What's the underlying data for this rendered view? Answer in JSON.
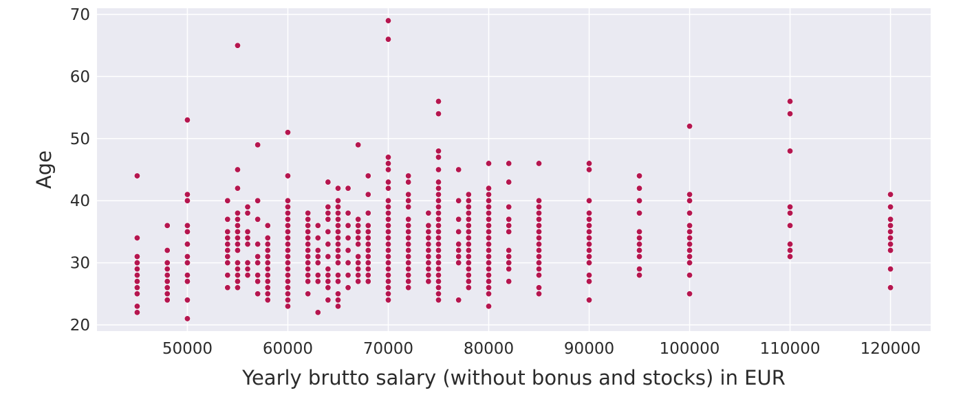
{
  "chart_data": {
    "type": "scatter",
    "title": "",
    "xlabel": "Yearly brutto salary (without bonus and stocks) in EUR",
    "ylabel": "Age",
    "xlim": [
      41000,
      124000
    ],
    "ylim": [
      19,
      71
    ],
    "xticks": [
      50000,
      60000,
      70000,
      80000,
      90000,
      100000,
      110000,
      120000
    ],
    "xtick_labels": [
      "50000",
      "60000",
      "70000",
      "80000",
      "90000",
      "100000",
      "110000",
      "120000"
    ],
    "yticks": [
      20,
      30,
      40,
      50,
      60,
      70
    ],
    "ytick_labels": [
      "20",
      "30",
      "40",
      "50",
      "60",
      "70"
    ],
    "grid": true,
    "background": "#eaeaf2",
    "grid_color": "#ffffff",
    "marker_color": "#b5164f",
    "points": [
      [
        45000,
        22
      ],
      [
        45000,
        23
      ],
      [
        45000,
        25
      ],
      [
        45000,
        26
      ],
      [
        45000,
        27
      ],
      [
        45000,
        28
      ],
      [
        45000,
        29
      ],
      [
        45000,
        30
      ],
      [
        45000,
        31
      ],
      [
        45000,
        34
      ],
      [
        45000,
        44
      ],
      [
        48000,
        24
      ],
      [
        48000,
        25
      ],
      [
        48000,
        26
      ],
      [
        48000,
        27
      ],
      [
        48000,
        28
      ],
      [
        48000,
        29
      ],
      [
        48000,
        30
      ],
      [
        48000,
        32
      ],
      [
        48000,
        36
      ],
      [
        50000,
        21
      ],
      [
        50000,
        24
      ],
      [
        50000,
        27
      ],
      [
        50000,
        28
      ],
      [
        50000,
        30
      ],
      [
        50000,
        31
      ],
      [
        50000,
        33
      ],
      [
        50000,
        35
      ],
      [
        50000,
        36
      ],
      [
        50000,
        40
      ],
      [
        50000,
        41
      ],
      [
        50000,
        53
      ],
      [
        54000,
        26
      ],
      [
        54000,
        28
      ],
      [
        54000,
        30
      ],
      [
        54000,
        31
      ],
      [
        54000,
        32
      ],
      [
        54000,
        33
      ],
      [
        54000,
        34
      ],
      [
        54000,
        35
      ],
      [
        54000,
        37
      ],
      [
        54000,
        40
      ],
      [
        55000,
        26
      ],
      [
        55000,
        27
      ],
      [
        55000,
        28
      ],
      [
        55000,
        29
      ],
      [
        55000,
        30
      ],
      [
        55000,
        32
      ],
      [
        55000,
        33
      ],
      [
        55000,
        34
      ],
      [
        55000,
        35
      ],
      [
        55000,
        36
      ],
      [
        55000,
        37
      ],
      [
        55000,
        38
      ],
      [
        55000,
        42
      ],
      [
        55000,
        45
      ],
      [
        55000,
        65
      ],
      [
        56000,
        28
      ],
      [
        56000,
        29
      ],
      [
        56000,
        30
      ],
      [
        56000,
        33
      ],
      [
        56000,
        34
      ],
      [
        56000,
        35
      ],
      [
        56000,
        38
      ],
      [
        56000,
        39
      ],
      [
        57000,
        25
      ],
      [
        57000,
        27
      ],
      [
        57000,
        28
      ],
      [
        57000,
        30
      ],
      [
        57000,
        31
      ],
      [
        57000,
        33
      ],
      [
        57000,
        37
      ],
      [
        57000,
        40
      ],
      [
        57000,
        49
      ],
      [
        58000,
        24
      ],
      [
        58000,
        25
      ],
      [
        58000,
        26
      ],
      [
        58000,
        27
      ],
      [
        58000,
        28
      ],
      [
        58000,
        29
      ],
      [
        58000,
        30
      ],
      [
        58000,
        31
      ],
      [
        58000,
        32
      ],
      [
        58000,
        33
      ],
      [
        58000,
        34
      ],
      [
        58000,
        36
      ],
      [
        60000,
        23
      ],
      [
        60000,
        24
      ],
      [
        60000,
        25
      ],
      [
        60000,
        26
      ],
      [
        60000,
        27
      ],
      [
        60000,
        28
      ],
      [
        60000,
        29
      ],
      [
        60000,
        30
      ],
      [
        60000,
        31
      ],
      [
        60000,
        32
      ],
      [
        60000,
        33
      ],
      [
        60000,
        34
      ],
      [
        60000,
        35
      ],
      [
        60000,
        36
      ],
      [
        60000,
        37
      ],
      [
        60000,
        38
      ],
      [
        60000,
        39
      ],
      [
        60000,
        40
      ],
      [
        60000,
        44
      ],
      [
        60000,
        51
      ],
      [
        62000,
        25
      ],
      [
        62000,
        27
      ],
      [
        62000,
        28
      ],
      [
        62000,
        29
      ],
      [
        62000,
        30
      ],
      [
        62000,
        31
      ],
      [
        62000,
        32
      ],
      [
        62000,
        33
      ],
      [
        62000,
        34
      ],
      [
        62000,
        35
      ],
      [
        62000,
        36
      ],
      [
        62000,
        37
      ],
      [
        62000,
        38
      ],
      [
        63000,
        22
      ],
      [
        63000,
        27
      ],
      [
        63000,
        28
      ],
      [
        63000,
        30
      ],
      [
        63000,
        31
      ],
      [
        63000,
        32
      ],
      [
        63000,
        34
      ],
      [
        63000,
        36
      ],
      [
        64000,
        24
      ],
      [
        64000,
        26
      ],
      [
        64000,
        27
      ],
      [
        64000,
        28
      ],
      [
        64000,
        29
      ],
      [
        64000,
        31
      ],
      [
        64000,
        33
      ],
      [
        64000,
        35
      ],
      [
        64000,
        37
      ],
      [
        64000,
        38
      ],
      [
        64000,
        39
      ],
      [
        64000,
        43
      ],
      [
        65000,
        23
      ],
      [
        65000,
        24
      ],
      [
        65000,
        25
      ],
      [
        65000,
        27
      ],
      [
        65000,
        28
      ],
      [
        65000,
        30
      ],
      [
        65000,
        31
      ],
      [
        65000,
        32
      ],
      [
        65000,
        33
      ],
      [
        65000,
        34
      ],
      [
        65000,
        35
      ],
      [
        65000,
        36
      ],
      [
        65000,
        37
      ],
      [
        65000,
        38
      ],
      [
        65000,
        39
      ],
      [
        65000,
        40
      ],
      [
        65000,
        42
      ],
      [
        66000,
        26
      ],
      [
        66000,
        28
      ],
      [
        66000,
        30
      ],
      [
        66000,
        32
      ],
      [
        66000,
        34
      ],
      [
        66000,
        36
      ],
      [
        66000,
        38
      ],
      [
        66000,
        42
      ],
      [
        67000,
        27
      ],
      [
        67000,
        28
      ],
      [
        67000,
        29
      ],
      [
        67000,
        30
      ],
      [
        67000,
        31
      ],
      [
        67000,
        33
      ],
      [
        67000,
        34
      ],
      [
        67000,
        35
      ],
      [
        67000,
        36
      ],
      [
        67000,
        37
      ],
      [
        67000,
        49
      ],
      [
        68000,
        27
      ],
      [
        68000,
        28
      ],
      [
        68000,
        29
      ],
      [
        68000,
        30
      ],
      [
        68000,
        31
      ],
      [
        68000,
        32
      ],
      [
        68000,
        33
      ],
      [
        68000,
        34
      ],
      [
        68000,
        35
      ],
      [
        68000,
        36
      ],
      [
        68000,
        38
      ],
      [
        68000,
        41
      ],
      [
        68000,
        44
      ],
      [
        70000,
        24
      ],
      [
        70000,
        25
      ],
      [
        70000,
        26
      ],
      [
        70000,
        27
      ],
      [
        70000,
        28
      ],
      [
        70000,
        29
      ],
      [
        70000,
        30
      ],
      [
        70000,
        31
      ],
      [
        70000,
        32
      ],
      [
        70000,
        33
      ],
      [
        70000,
        34
      ],
      [
        70000,
        35
      ],
      [
        70000,
        36
      ],
      [
        70000,
        37
      ],
      [
        70000,
        38
      ],
      [
        70000,
        39
      ],
      [
        70000,
        40
      ],
      [
        70000,
        42
      ],
      [
        70000,
        43
      ],
      [
        70000,
        45
      ],
      [
        70000,
        46
      ],
      [
        70000,
        47
      ],
      [
        70000,
        66
      ],
      [
        70000,
        69
      ],
      [
        72000,
        26
      ],
      [
        72000,
        27
      ],
      [
        72000,
        28
      ],
      [
        72000,
        29
      ],
      [
        72000,
        30
      ],
      [
        72000,
        31
      ],
      [
        72000,
        32
      ],
      [
        72000,
        33
      ],
      [
        72000,
        34
      ],
      [
        72000,
        35
      ],
      [
        72000,
        36
      ],
      [
        72000,
        37
      ],
      [
        72000,
        39
      ],
      [
        72000,
        40
      ],
      [
        72000,
        41
      ],
      [
        72000,
        43
      ],
      [
        72000,
        44
      ],
      [
        74000,
        27
      ],
      [
        74000,
        28
      ],
      [
        74000,
        29
      ],
      [
        74000,
        30
      ],
      [
        74000,
        31
      ],
      [
        74000,
        32
      ],
      [
        74000,
        33
      ],
      [
        74000,
        34
      ],
      [
        74000,
        35
      ],
      [
        74000,
        36
      ],
      [
        74000,
        38
      ],
      [
        75000,
        24
      ],
      [
        75000,
        25
      ],
      [
        75000,
        26
      ],
      [
        75000,
        27
      ],
      [
        75000,
        28
      ],
      [
        75000,
        29
      ],
      [
        75000,
        30
      ],
      [
        75000,
        31
      ],
      [
        75000,
        32
      ],
      [
        75000,
        33
      ],
      [
        75000,
        34
      ],
      [
        75000,
        35
      ],
      [
        75000,
        36
      ],
      [
        75000,
        37
      ],
      [
        75000,
        38
      ],
      [
        75000,
        39
      ],
      [
        75000,
        40
      ],
      [
        75000,
        41
      ],
      [
        75000,
        42
      ],
      [
        75000,
        43
      ],
      [
        75000,
        45
      ],
      [
        75000,
        47
      ],
      [
        75000,
        48
      ],
      [
        75000,
        54
      ],
      [
        75000,
        56
      ],
      [
        77000,
        24
      ],
      [
        77000,
        30
      ],
      [
        77000,
        31
      ],
      [
        77000,
        32
      ],
      [
        77000,
        33
      ],
      [
        77000,
        35
      ],
      [
        77000,
        37
      ],
      [
        77000,
        40
      ],
      [
        77000,
        45
      ],
      [
        78000,
        26
      ],
      [
        78000,
        27
      ],
      [
        78000,
        28
      ],
      [
        78000,
        29
      ],
      [
        78000,
        30
      ],
      [
        78000,
        31
      ],
      [
        78000,
        32
      ],
      [
        78000,
        33
      ],
      [
        78000,
        34
      ],
      [
        78000,
        35
      ],
      [
        78000,
        36
      ],
      [
        78000,
        37
      ],
      [
        78000,
        38
      ],
      [
        78000,
        39
      ],
      [
        78000,
        40
      ],
      [
        78000,
        41
      ],
      [
        80000,
        23
      ],
      [
        80000,
        25
      ],
      [
        80000,
        26
      ],
      [
        80000,
        27
      ],
      [
        80000,
        28
      ],
      [
        80000,
        29
      ],
      [
        80000,
        30
      ],
      [
        80000,
        31
      ],
      [
        80000,
        32
      ],
      [
        80000,
        33
      ],
      [
        80000,
        34
      ],
      [
        80000,
        35
      ],
      [
        80000,
        36
      ],
      [
        80000,
        37
      ],
      [
        80000,
        38
      ],
      [
        80000,
        39
      ],
      [
        80000,
        40
      ],
      [
        80000,
        41
      ],
      [
        80000,
        42
      ],
      [
        80000,
        46
      ],
      [
        82000,
        27
      ],
      [
        82000,
        29
      ],
      [
        82000,
        30
      ],
      [
        82000,
        31
      ],
      [
        82000,
        32
      ],
      [
        82000,
        35
      ],
      [
        82000,
        36
      ],
      [
        82000,
        37
      ],
      [
        82000,
        39
      ],
      [
        82000,
        43
      ],
      [
        82000,
        46
      ],
      [
        85000,
        25
      ],
      [
        85000,
        26
      ],
      [
        85000,
        28
      ],
      [
        85000,
        29
      ],
      [
        85000,
        30
      ],
      [
        85000,
        31
      ],
      [
        85000,
        32
      ],
      [
        85000,
        33
      ],
      [
        85000,
        34
      ],
      [
        85000,
        35
      ],
      [
        85000,
        36
      ],
      [
        85000,
        37
      ],
      [
        85000,
        38
      ],
      [
        85000,
        39
      ],
      [
        85000,
        40
      ],
      [
        85000,
        46
      ],
      [
        90000,
        24
      ],
      [
        90000,
        27
      ],
      [
        90000,
        28
      ],
      [
        90000,
        30
      ],
      [
        90000,
        31
      ],
      [
        90000,
        32
      ],
      [
        90000,
        33
      ],
      [
        90000,
        34
      ],
      [
        90000,
        35
      ],
      [
        90000,
        36
      ],
      [
        90000,
        37
      ],
      [
        90000,
        38
      ],
      [
        90000,
        40
      ],
      [
        90000,
        45
      ],
      [
        90000,
        46
      ],
      [
        95000,
        28
      ],
      [
        95000,
        29
      ],
      [
        95000,
        31
      ],
      [
        95000,
        32
      ],
      [
        95000,
        33
      ],
      [
        95000,
        34
      ],
      [
        95000,
        35
      ],
      [
        95000,
        38
      ],
      [
        95000,
        40
      ],
      [
        95000,
        42
      ],
      [
        95000,
        44
      ],
      [
        100000,
        25
      ],
      [
        100000,
        28
      ],
      [
        100000,
        30
      ],
      [
        100000,
        31
      ],
      [
        100000,
        32
      ],
      [
        100000,
        33
      ],
      [
        100000,
        34
      ],
      [
        100000,
        35
      ],
      [
        100000,
        36
      ],
      [
        100000,
        38
      ],
      [
        100000,
        40
      ],
      [
        100000,
        41
      ],
      [
        100000,
        52
      ],
      [
        110000,
        31
      ],
      [
        110000,
        32
      ],
      [
        110000,
        33
      ],
      [
        110000,
        36
      ],
      [
        110000,
        38
      ],
      [
        110000,
        39
      ],
      [
        110000,
        48
      ],
      [
        110000,
        54
      ],
      [
        110000,
        56
      ],
      [
        120000,
        26
      ],
      [
        120000,
        29
      ],
      [
        120000,
        32
      ],
      [
        120000,
        33
      ],
      [
        120000,
        34
      ],
      [
        120000,
        35
      ],
      [
        120000,
        36
      ],
      [
        120000,
        37
      ],
      [
        120000,
        39
      ],
      [
        120000,
        41
      ]
    ]
  }
}
